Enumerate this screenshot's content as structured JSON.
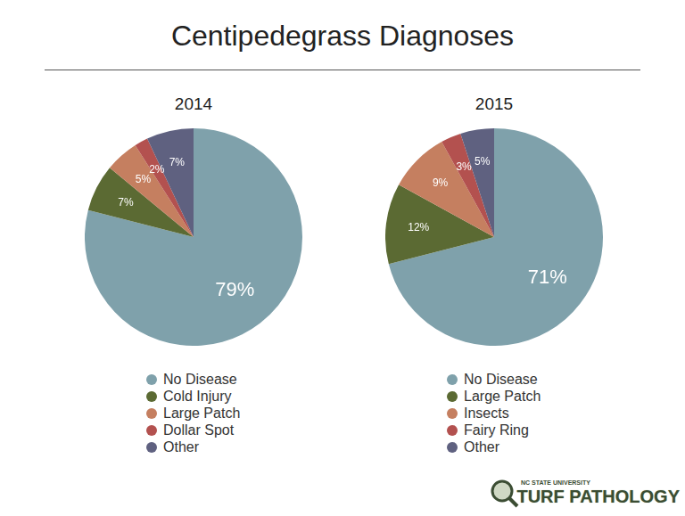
{
  "title": "Centipedegrass Diagnoses",
  "logo": [
    "NC STATE UNIVERSITY",
    "TURF PATHOLOGY"
  ],
  "chart_data": [
    {
      "type": "pie",
      "title": "2014",
      "categories": [
        "No Disease",
        "Cold Injury",
        "Large Patch",
        "Dollar Spot",
        "Other"
      ],
      "values": [
        79,
        7,
        5,
        2,
        7
      ],
      "value_labels": [
        "79%",
        "7%",
        "5%",
        "2%",
        "7%"
      ],
      "colors": [
        "#7fa1ab",
        "#5b6a33",
        "#c57f60",
        "#b3514f",
        "#5f6180"
      ],
      "data_labels": true,
      "legend": "bottom"
    },
    {
      "type": "pie",
      "title": "2015",
      "categories": [
        "No Disease",
        "Large Patch",
        "Insects",
        "Fairy Ring",
        "Other"
      ],
      "values": [
        71,
        12,
        9,
        3,
        5
      ],
      "value_labels": [
        "71%",
        "12%",
        "9%",
        "3%",
        "5%"
      ],
      "colors": [
        "#7fa1ab",
        "#5b6a33",
        "#c57f60",
        "#b3514f",
        "#5f6180"
      ],
      "data_labels": true,
      "legend": "bottom"
    }
  ]
}
